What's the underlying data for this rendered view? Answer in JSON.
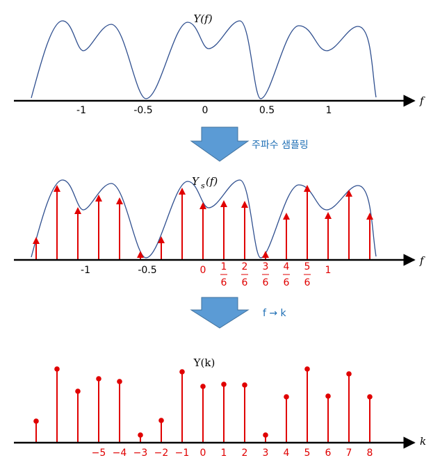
{
  "panel1": {
    "title": "Y(f)",
    "axis_label": "f",
    "ticks": [
      -1,
      -0.5,
      0,
      0.5,
      1
    ]
  },
  "arrow1": {
    "label": "주파수 샘플링"
  },
  "panel2": {
    "title": {
      "main": "Y",
      "subscript": "s",
      "argument": "(f)"
    },
    "axis_label": "f",
    "black_ticks": [
      -1,
      -0.5
    ],
    "red_ticks": [
      "0",
      {
        "numerator": "1",
        "denominator": "6"
      },
      {
        "numerator": "2",
        "denominator": "6"
      },
      {
        "numerator": "3",
        "denominator": "6"
      },
      {
        "numerator": "4",
        "denominator": "6"
      },
      {
        "numerator": "5",
        "denominator": "6"
      },
      "1"
    ]
  },
  "arrow2": {
    "label": "f → k"
  },
  "panel3": {
    "title": "Y(k)",
    "axis_label": "k",
    "ticks": [
      "−5",
      "−4",
      "−3",
      "−2",
      "−1",
      "0",
      "1",
      "2",
      "3",
      "4",
      "5",
      "6",
      "7",
      "8"
    ]
  },
  "samples": {
    "values": [
      31,
      106,
      74,
      92,
      88,
      11,
      32,
      102,
      81,
      84,
      83,
      11,
      66,
      106,
      67,
      99,
      66
    ]
  }
}
